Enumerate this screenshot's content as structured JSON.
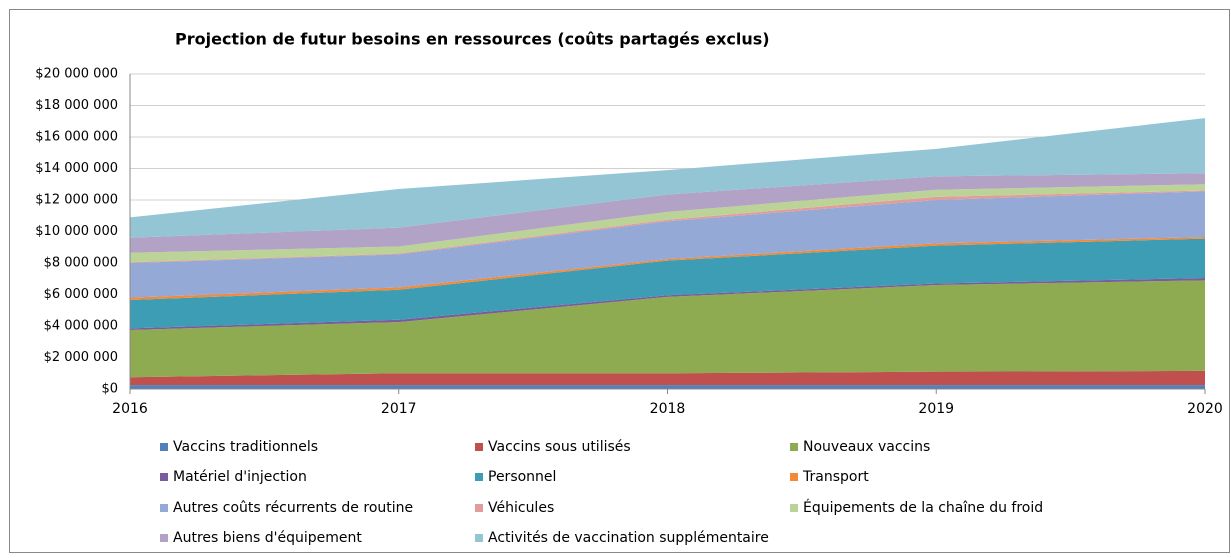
{
  "chart_data": {
    "type": "stacked_area",
    "title": "Projection de futur besoins en ressources (coûts partagés exclus)",
    "x": [
      2016,
      2017,
      2018,
      2019,
      2020
    ],
    "xlim": [
      2016,
      2020
    ],
    "xticks": [
      2016,
      2017,
      2018,
      2019,
      2020
    ],
    "ylim": [
      0,
      20000000
    ],
    "yticks": [
      {
        "value": 0,
        "label": "$0"
      },
      {
        "value": 2000000,
        "label": "$2 000 000"
      },
      {
        "value": 4000000,
        "label": "$4 000 000"
      },
      {
        "value": 6000000,
        "label": "$6 000 000"
      },
      {
        "value": 8000000,
        "label": "$8 000 000"
      },
      {
        "value": 10000000,
        "label": "$10 000 000"
      },
      {
        "value": 12000000,
        "label": "$12 000 000"
      },
      {
        "value": 14000000,
        "label": "$14 000 000"
      },
      {
        "value": 16000000,
        "label": "$16 000 000"
      },
      {
        "value": 18000000,
        "label": "$18 000 000"
      },
      {
        "value": 20000000,
        "label": "$20 000 000"
      }
    ],
    "grid": true,
    "legend": "bottom",
    "series": [
      {
        "name": "Vaccins traditionnels",
        "color": "#4f81bd",
        "values": [
          250000,
          250000,
          250000,
          250000,
          250000
        ]
      },
      {
        "name": "Vaccins sous utilisés",
        "color": "#c0504d",
        "values": [
          500000,
          750000,
          750000,
          850000,
          900000
        ]
      },
      {
        "name": "Nouveaux vaccins",
        "color": "#8fab52",
        "values": [
          3000000,
          3250000,
          4850000,
          5500000,
          5750000
        ]
      },
      {
        "name": "Matériel d'injection",
        "color": "#7a5c9c",
        "values": [
          100000,
          150000,
          100000,
          100000,
          150000
        ]
      },
      {
        "name": "Personnel",
        "color": "#3c9db5",
        "values": [
          1800000,
          1900000,
          2200000,
          2400000,
          2500000
        ]
      },
      {
        "name": "Transport",
        "color": "#f38a38",
        "values": [
          150000,
          150000,
          100000,
          150000,
          100000
        ]
      },
      {
        "name": "Autres coûts récurrents de routine",
        "color": "#95a9d6",
        "values": [
          2200000,
          2100000,
          2400000,
          2750000,
          2900000
        ]
      },
      {
        "name": "Véhicules",
        "color": "#e29c9a",
        "values": [
          50000,
          50000,
          100000,
          200000,
          50000
        ]
      },
      {
        "name": "Équipements de la chaîne du froid",
        "color": "#bcd397",
        "values": [
          600000,
          450000,
          500000,
          450000,
          400000
        ]
      },
      {
        "name": "Autres biens d'équipement",
        "color": "#b1a2c6",
        "values": [
          950000,
          1200000,
          1100000,
          850000,
          700000
        ]
      },
      {
        "name": "Activités de vaccination supplémentaire",
        "color": "#93c5d5",
        "values": [
          1300000,
          2450000,
          1550000,
          1750000,
          3500000
        ]
      }
    ]
  }
}
